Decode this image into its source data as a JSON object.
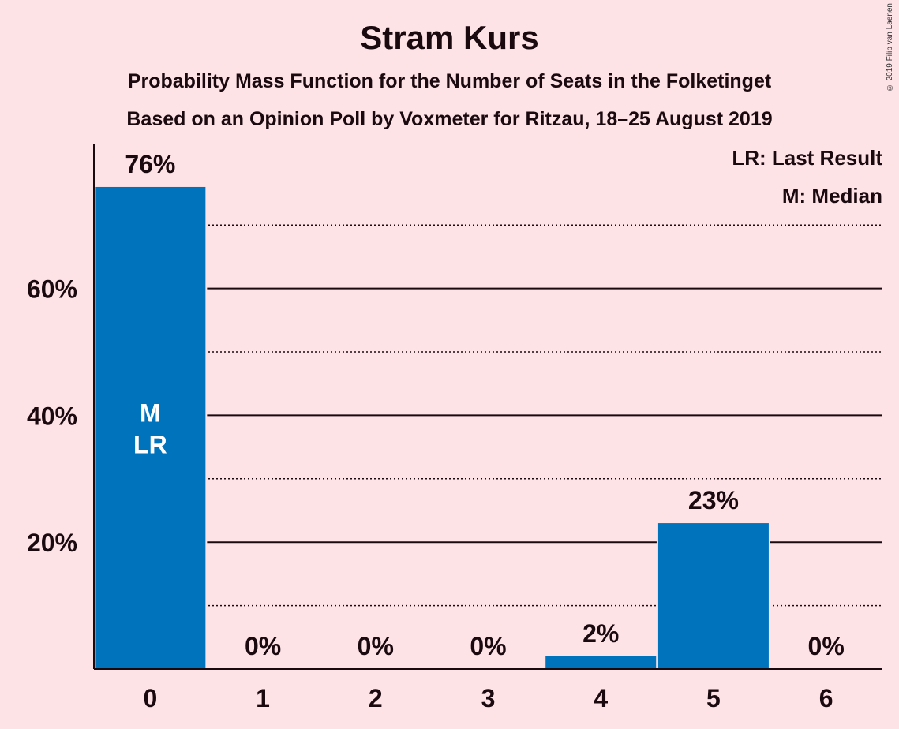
{
  "chart_data": {
    "type": "bar",
    "title": "Stram Kurs",
    "subtitle": "Probability Mass Function for the Number of Seats in the Folketinget",
    "subtitle2": "Based on an Opinion Poll by Voxmeter for Ritzau, 18–25 August 2019",
    "categories": [
      "0",
      "1",
      "2",
      "3",
      "4",
      "5",
      "6"
    ],
    "values": [
      76,
      0,
      0,
      0,
      2,
      23,
      0
    ],
    "value_labels": [
      "76%",
      "0%",
      "0%",
      "0%",
      "2%",
      "23%",
      "0%"
    ],
    "bar_markers": {
      "0": [
        "M",
        "LR"
      ]
    },
    "ylim": [
      0,
      83
    ],
    "yticks": [
      20,
      40,
      60
    ],
    "ytick_labels": [
      "20%",
      "40%",
      "60%"
    ],
    "minor_gridlines": [
      10,
      30,
      50,
      70
    ],
    "legend": [
      "LR: Last Result",
      "M: Median"
    ],
    "legend_position": "top-right",
    "bar_color": "#0073BD",
    "background_color": "#FDE2E6"
  },
  "copyright": "© 2019 Filip van Laenen"
}
